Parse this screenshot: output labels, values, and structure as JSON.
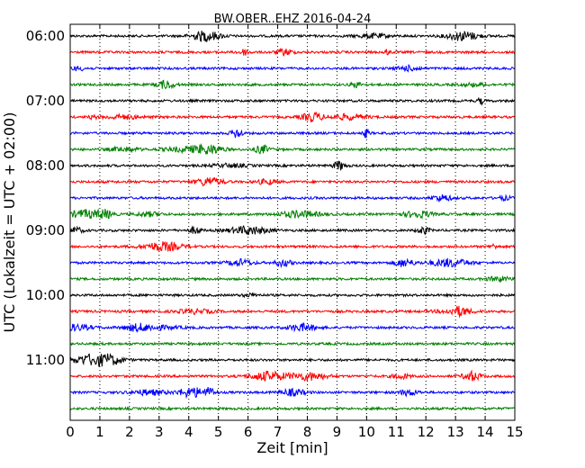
{
  "chart_data": {
    "type": "line",
    "title": "BW.OBER..EHZ 2016-04-24",
    "xlabel": "Zeit  [min]",
    "ylabel": "UTC (Lokalzeit = UTC + 02:00)",
    "xlim": [
      0,
      15
    ],
    "x_ticks": [
      "0",
      "1",
      "2",
      "3",
      "4",
      "5",
      "6",
      "7",
      "8",
      "9",
      "10",
      "11",
      "12",
      "13",
      "14",
      "15"
    ],
    "y_tick_labels": [
      "06:00",
      "07:00",
      "08:00",
      "09:00",
      "10:00",
      "11:00"
    ],
    "grid": "vertical dotted",
    "series_colors": [
      "#000000",
      "#ff0000",
      "#0000ff",
      "#008000"
    ],
    "rows": [
      {
        "start": "06:00",
        "color": "#000000"
      },
      {
        "start": "06:15",
        "color": "#ff0000"
      },
      {
        "start": "06:30",
        "color": "#0000ff"
      },
      {
        "start": "06:45",
        "color": "#008000"
      },
      {
        "start": "07:00",
        "color": "#000000"
      },
      {
        "start": "07:15",
        "color": "#ff0000"
      },
      {
        "start": "07:30",
        "color": "#0000ff"
      },
      {
        "start": "07:45",
        "color": "#008000"
      },
      {
        "start": "08:00",
        "color": "#000000"
      },
      {
        "start": "08:15",
        "color": "#ff0000"
      },
      {
        "start": "08:30",
        "color": "#0000ff"
      },
      {
        "start": "08:45",
        "color": "#008000"
      },
      {
        "start": "09:00",
        "color": "#000000"
      },
      {
        "start": "09:15",
        "color": "#ff0000"
      },
      {
        "start": "09:30",
        "color": "#0000ff"
      },
      {
        "start": "09:45",
        "color": "#008000"
      },
      {
        "start": "10:00",
        "color": "#000000"
      },
      {
        "start": "10:15",
        "color": "#ff0000"
      },
      {
        "start": "10:30",
        "color": "#0000ff"
      },
      {
        "start": "10:45",
        "color": "#008000"
      },
      {
        "start": "11:00",
        "color": "#000000"
      },
      {
        "start": "11:15",
        "color": "#ff0000"
      },
      {
        "start": "11:30",
        "color": "#0000ff"
      },
      {
        "start": "11:45",
        "color": "#008000"
      }
    ]
  }
}
